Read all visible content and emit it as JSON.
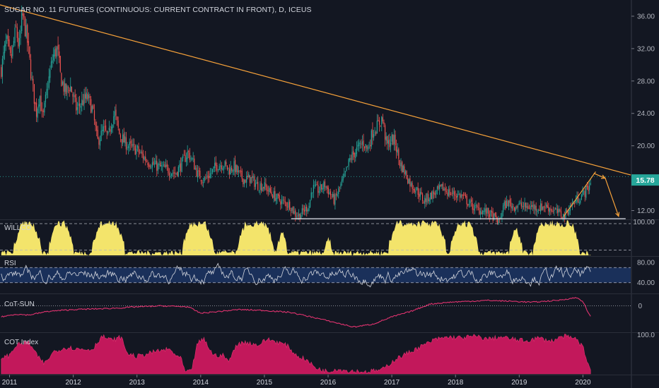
{
  "header": {
    "title": "SUGAR NO. 11 FUTURES (CONTINUOUS: CURRENT CONTRACT IN FRONT), D, ICEUS"
  },
  "colors": {
    "background": "#131722",
    "up": "#26a69a",
    "down": "#ef5350",
    "trendline": "#f7a23a",
    "support": "#e0e3eb",
    "level_dots": "#26a69a",
    "price_badge": "#26a69a",
    "willco_fill": "#f3e46b",
    "rsi_line": "#d1d4dc",
    "rsi_band": "#1e3a6e",
    "cot_sun_line": "#e0336f",
    "cot_index_fill": "#c2185b"
  },
  "chart_data": [
    {
      "type": "candlestick",
      "name": "price",
      "x_ticks": [
        "2011",
        "2012",
        "2013",
        "2014",
        "2015",
        "2016",
        "2017",
        "2018",
        "2019",
        "2020"
      ],
      "y_ticks": [
        "36.00",
        "32.00",
        "28.00",
        "24.00",
        "20.00",
        "16.00",
        "12.00"
      ],
      "ylim": [
        11,
        38
      ],
      "xlim": [
        2010.85,
        2020.75
      ],
      "last_price": "15.78",
      "keypoints": [
        [
          2010.87,
          29.5
        ],
        [
          2010.95,
          33.0
        ],
        [
          2011.02,
          30.5
        ],
        [
          2011.1,
          34.5
        ],
        [
          2011.15,
          32.0
        ],
        [
          2011.2,
          36.2
        ],
        [
          2011.27,
          33.5
        ],
        [
          2011.35,
          28.0
        ],
        [
          2011.42,
          24.0
        ],
        [
          2011.47,
          26.5
        ],
        [
          2011.52,
          23.2
        ],
        [
          2011.6,
          27.5
        ],
        [
          2011.68,
          31.0
        ],
        [
          2011.75,
          32.0
        ],
        [
          2011.8,
          28.5
        ],
        [
          2011.88,
          26.5
        ],
        [
          2011.95,
          27.5
        ],
        [
          2012.05,
          24.5
        ],
        [
          2012.15,
          25.5
        ],
        [
          2012.22,
          26.0
        ],
        [
          2012.3,
          24.5
        ],
        [
          2012.38,
          20.5
        ],
        [
          2012.48,
          22.0
        ],
        [
          2012.55,
          21.0
        ],
        [
          2012.6,
          23.0
        ],
        [
          2012.65,
          24.0
        ],
        [
          2012.72,
          21.5
        ],
        [
          2012.8,
          20.5
        ],
        [
          2012.9,
          19.8
        ],
        [
          2013.0,
          19.5
        ],
        [
          2013.15,
          18.2
        ],
        [
          2013.3,
          17.5
        ],
        [
          2013.5,
          17.0
        ],
        [
          2013.6,
          16.6
        ],
        [
          2013.68,
          17.5
        ],
        [
          2013.8,
          19.2
        ],
        [
          2013.88,
          18.0
        ],
        [
          2013.95,
          16.5
        ],
        [
          2014.05,
          15.8
        ],
        [
          2014.15,
          16.5
        ],
        [
          2014.25,
          17.6
        ],
        [
          2014.35,
          17.8
        ],
        [
          2014.45,
          17.0
        ],
        [
          2014.52,
          17.5
        ],
        [
          2014.6,
          16.5
        ],
        [
          2014.68,
          15.8
        ],
        [
          2014.78,
          16.0
        ],
        [
          2014.88,
          15.2
        ],
        [
          2015.0,
          15.0
        ],
        [
          2015.1,
          14.2
        ],
        [
          2015.2,
          13.5
        ],
        [
          2015.3,
          13.0
        ],
        [
          2015.4,
          12.7
        ],
        [
          2015.48,
          11.6
        ],
        [
          2015.55,
          11.4
        ],
        [
          2015.62,
          12.0
        ],
        [
          2015.7,
          12.6
        ],
        [
          2015.75,
          14.8
        ],
        [
          2015.85,
          14.5
        ],
        [
          2015.95,
          15.2
        ],
        [
          2016.05,
          13.8
        ],
        [
          2016.1,
          13.2
        ],
        [
          2016.18,
          14.8
        ],
        [
          2016.25,
          16.0
        ],
        [
          2016.35,
          18.5
        ],
        [
          2016.45,
          19.5
        ],
        [
          2016.55,
          20.5
        ],
        [
          2016.62,
          19.5
        ],
        [
          2016.7,
          21.8
        ],
        [
          2016.78,
          22.5
        ],
        [
          2016.85,
          23.5
        ],
        [
          2016.92,
          20.0
        ],
        [
          2017.0,
          20.8
        ],
        [
          2017.05,
          20.5
        ],
        [
          2017.12,
          18.0
        ],
        [
          2017.2,
          16.8
        ],
        [
          2017.3,
          15.2
        ],
        [
          2017.4,
          14.5
        ],
        [
          2017.5,
          13.2
        ],
        [
          2017.6,
          13.8
        ],
        [
          2017.7,
          14.3
        ],
        [
          2017.8,
          14.8
        ],
        [
          2017.9,
          14.2
        ],
        [
          2018.0,
          14.0
        ],
        [
          2018.1,
          13.8
        ],
        [
          2018.2,
          13.0
        ],
        [
          2018.3,
          12.3
        ],
        [
          2018.4,
          12.0
        ],
        [
          2018.5,
          11.8
        ],
        [
          2018.6,
          11.2
        ],
        [
          2018.68,
          10.5
        ],
        [
          2018.75,
          12.5
        ],
        [
          2018.82,
          13.0
        ],
        [
          2018.9,
          12.5
        ],
        [
          2019.0,
          12.7
        ],
        [
          2019.1,
          12.4
        ],
        [
          2019.2,
          12.5
        ],
        [
          2019.3,
          12.3
        ],
        [
          2019.4,
          12.6
        ],
        [
          2019.5,
          12.2
        ],
        [
          2019.6,
          11.8
        ],
        [
          2019.7,
          11.3
        ],
        [
          2019.8,
          12.5
        ],
        [
          2019.9,
          13.3
        ],
        [
          2020.0,
          14.0
        ],
        [
          2020.1,
          15.0
        ],
        [
          2020.12,
          15.78
        ]
      ],
      "lines": [
        {
          "kind": "trendline",
          "from": [
            2010.85,
            37.4
          ],
          "to": [
            2020.75,
            16.4
          ]
        },
        {
          "kind": "support",
          "from": [
            2015.42,
            11.0
          ],
          "to": [
            2020.67,
            11.0
          ]
        },
        {
          "kind": "rising",
          "from": [
            2019.7,
            11.3
          ],
          "to": [
            2020.2,
            16.8
          ]
        },
        {
          "kind": "level",
          "from": [
            2010.85,
            16.2
          ],
          "to": [
            2020.75,
            16.2
          ]
        },
        {
          "kind": "arrow",
          "from": [
            2020.17,
            16.6
          ],
          "to": [
            2020.35,
            16.0
          ]
        },
        {
          "kind": "arrow",
          "from": [
            2020.35,
            16.0
          ],
          "to": [
            2020.56,
            11.3
          ]
        }
      ]
    },
    {
      "type": "area",
      "name": "WILLCO",
      "label": "WILLCO",
      "y_ticks": [
        "100.00"
      ],
      "ylim": [
        0,
        100
      ],
      "high_periods": [
        [
          2011.07,
          2011.5
        ],
        [
          2011.62,
          2012.0
        ],
        [
          2012.3,
          2012.8
        ],
        [
          2013.72,
          2014.2
        ],
        [
          2014.58,
          2015.15
        ],
        [
          2015.2,
          2015.35
        ],
        [
          2015.95,
          2016.05
        ],
        [
          2016.95,
          2017.85
        ],
        [
          2017.93,
          2018.35
        ],
        [
          2018.85,
          2019.05
        ],
        [
          2019.22,
          2019.95
        ]
      ],
      "baseline_range": [
        0,
        15
      ]
    },
    {
      "type": "line",
      "name": "RSI",
      "label": "RSI",
      "y_ticks": [
        "80.00",
        "40.00"
      ],
      "ylim": [
        20,
        90
      ],
      "band": [
        40,
        70
      ],
      "dash_levels": [
        70,
        40
      ]
    },
    {
      "type": "line",
      "name": "CoT-SUN",
      "label": "CoT-SUN",
      "y_ticks": [
        "0"
      ],
      "ylim": [
        -280,
        120
      ],
      "keypoints": [
        [
          2010.87,
          -120
        ],
        [
          2011.1,
          -90
        ],
        [
          2011.3,
          -100
        ],
        [
          2011.6,
          -60
        ],
        [
          2012.0,
          -40
        ],
        [
          2012.5,
          -30
        ],
        [
          2012.8,
          -20
        ],
        [
          2013.0,
          -10
        ],
        [
          2013.4,
          0
        ],
        [
          2013.8,
          -10
        ],
        [
          2014.0,
          -80
        ],
        [
          2014.3,
          -60
        ],
        [
          2014.6,
          -40
        ],
        [
          2015.0,
          -50
        ],
        [
          2015.4,
          -70
        ],
        [
          2015.8,
          -130
        ],
        [
          2016.1,
          -180
        ],
        [
          2016.4,
          -230
        ],
        [
          2016.7,
          -200
        ],
        [
          2017.0,
          -120
        ],
        [
          2017.3,
          -60
        ],
        [
          2017.6,
          20
        ],
        [
          2017.9,
          40
        ],
        [
          2018.2,
          50
        ],
        [
          2018.5,
          60
        ],
        [
          2018.9,
          50
        ],
        [
          2019.2,
          40
        ],
        [
          2019.6,
          60
        ],
        [
          2019.9,
          90
        ],
        [
          2020.0,
          50
        ],
        [
          2020.07,
          -60
        ],
        [
          2020.12,
          -120
        ]
      ]
    },
    {
      "type": "area",
      "name": "COT Index",
      "label": "COT Index",
      "y_ticks": [
        "100.0"
      ],
      "ylim": [
        0,
        100
      ],
      "keypoints": [
        [
          2010.87,
          40
        ],
        [
          2011.0,
          45
        ],
        [
          2011.1,
          70
        ],
        [
          2011.3,
          78
        ],
        [
          2011.45,
          40
        ],
        [
          2011.55,
          25
        ],
        [
          2011.7,
          55
        ],
        [
          2011.9,
          65
        ],
        [
          2012.1,
          60
        ],
        [
          2012.3,
          60
        ],
        [
          2012.45,
          92
        ],
        [
          2012.6,
          82
        ],
        [
          2012.75,
          90
        ],
        [
          2012.85,
          50
        ],
        [
          2013.0,
          42
        ],
        [
          2013.3,
          55
        ],
        [
          2013.5,
          60
        ],
        [
          2013.7,
          35
        ],
        [
          2013.75,
          5
        ],
        [
          2013.85,
          5
        ],
        [
          2013.95,
          75
        ],
        [
          2014.05,
          85
        ],
        [
          2014.2,
          45
        ],
        [
          2014.35,
          45
        ],
        [
          2014.45,
          30
        ],
        [
          2014.55,
          70
        ],
        [
          2014.7,
          78
        ],
        [
          2014.9,
          70
        ],
        [
          2015.05,
          85
        ],
        [
          2015.2,
          78
        ],
        [
          2015.35,
          70
        ],
        [
          2015.5,
          45
        ],
        [
          2015.65,
          35
        ],
        [
          2015.8,
          15
        ],
        [
          2015.9,
          10
        ],
        [
          2016.0,
          5
        ],
        [
          2016.1,
          12
        ],
        [
          2016.3,
          8
        ],
        [
          2016.6,
          5
        ],
        [
          2016.85,
          10
        ],
        [
          2017.05,
          35
        ],
        [
          2017.3,
          55
        ],
        [
          2017.5,
          70
        ],
        [
          2017.7,
          85
        ],
        [
          2017.9,
          90
        ],
        [
          2018.1,
          88
        ],
        [
          2018.3,
          92
        ],
        [
          2018.5,
          85
        ],
        [
          2018.7,
          90
        ],
        [
          2018.9,
          85
        ],
        [
          2019.1,
          80
        ],
        [
          2019.3,
          88
        ],
        [
          2019.5,
          80
        ],
        [
          2019.7,
          92
        ],
        [
          2019.9,
          85
        ],
        [
          2020.0,
          65
        ],
        [
          2020.05,
          40
        ],
        [
          2020.12,
          8
        ]
      ]
    }
  ]
}
